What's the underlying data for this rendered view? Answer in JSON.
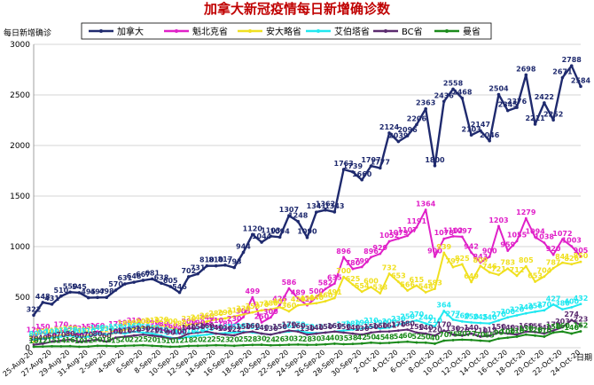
{
  "chart_data": {
    "type": "line",
    "title": "加拿大新冠疫情每日新增确诊数",
    "ylabel": "每日新增确诊",
    "xlabel": "日期",
    "ylim": [
      0,
      3000
    ],
    "yticks": [
      0,
      500,
      1000,
      1500,
      2000,
      2500,
      3000
    ],
    "grid": true,
    "legend_position": "top",
    "start_date": "2020-08-25",
    "days": 61,
    "x_tick_labels": [
      "25-Aug-20",
      "27-Aug-20",
      "29-Aug-20",
      "31-Aug-20",
      "2-Sep-20",
      "4-Sep-20",
      "6-Sep-20",
      "8-Sep-20",
      "10-Sep-20",
      "12-Sep-20",
      "14-Sep-20",
      "16-Sep-20",
      "18-Sep-20",
      "20-Sep-20",
      "22-Sep-20",
      "24-Sep-20",
      "26-Sep-20",
      "28-Sep-20",
      "30-Sep-20",
      "2-Oct-20",
      "4-Oct-20",
      "6-Oct-20",
      "8-Oct-20",
      "10-Oct-20",
      "12-Oct-20",
      "14-Oct-20",
      "16-Oct-20",
      "18-Oct-20",
      "20-Oct-20",
      "22-Oct-20",
      "24-Oct-20"
    ],
    "series": [
      {
        "name": "加拿大",
        "color": "#1f2a6e",
        "values": [
          322,
          448,
          431,
          510,
          550,
          545,
          495,
          497,
          498,
          570,
          631,
          648,
          667,
          681,
          638,
          605,
          546,
          702,
          731,
          810,
          810,
          817,
          793,
          944,
          1120,
          1044,
          1103,
          1094,
          1307,
          1248,
          1090,
          1341,
          1362,
          1343,
          1763,
          1739,
          1660,
          1797,
          1777,
          2124,
          2039,
          2096,
          2206,
          2363,
          1800,
          2436,
          2558,
          2468,
          2103,
          2147,
          2046,
          2504,
          2345,
          2376,
          2698,
          2211,
          2422,
          2252,
          2671,
          2788,
          2584
        ]
      },
      {
        "name": "魁北克省",
        "color": "#e020c8",
        "values": [
          120,
          150,
          110,
          170,
          140,
          130,
          150,
          160,
          120,
          175,
          190,
          210,
          200,
          190,
          180,
          160,
          140,
          200,
          190,
          240,
          210,
          180,
          230,
          303,
          499,
          250,
          300,
          425,
          586,
          489,
          420,
          500,
          582,
          635,
          896,
          780,
          799,
          896,
          929,
          1052,
          1079,
          1107,
          1191,
          1364,
          900,
          1078,
          1102,
          1097,
          942,
          843,
          900,
          1203,
          959,
          1055,
          1279,
          1094,
          1038,
          920,
          1072,
          1003,
          905
        ]
      },
      {
        "name": "安大略省",
        "color": "#f0e020",
        "values": [
          60,
          100,
          110,
          120,
          130,
          110,
          120,
          140,
          120,
          150,
          180,
          190,
          200,
          210,
          220,
          200,
          180,
          230,
          240,
          260,
          280,
          290,
          310,
          330,
          350,
          370,
          380,
          401,
          360,
          420,
          430,
          440,
          460,
          491,
          700,
          625,
          554,
          600,
          538,
          732,
          653,
          566,
          615,
          548,
          583,
          939,
          797,
          825,
          649,
          809,
          746,
          721,
          783,
          712,
          805,
          653,
          704,
          787,
          841,
          826,
          850
        ]
      },
      {
        "name": "艾伯塔省",
        "color": "#20e8f0",
        "values": [
          80,
          90,
          100,
          110,
          120,
          105,
          110,
          140,
          130,
          150,
          140,
          160,
          150,
          140,
          120,
          100,
          90,
          110,
          120,
          130,
          140,
          145,
          150,
          160,
          150,
          140,
          130,
          150,
          160,
          170,
          150,
          145,
          150,
          160,
          170,
          180,
          190,
          210,
          190,
          200,
          230,
          250,
          270,
          240,
          210,
          364,
          277,
          260,
          250,
          245,
          240,
          270,
          300,
          320,
          340,
          356,
          370,
          427,
          380,
          400,
          432
        ]
      },
      {
        "name": "BC省",
        "color": "#5a2a6e",
        "values": [
          30,
          40,
          60,
          70,
          80,
          60,
          70,
          80,
          60,
          100,
          110,
          120,
          130,
          120,
          110,
          90,
          100,
          140,
          150,
          160,
          140,
          130,
          122,
          150,
          160,
          140,
          130,
          150,
          170,
          160,
          130,
          140,
          150,
          160,
          150,
          140,
          130,
          150,
          160,
          161,
          170,
          180,
          150,
          140,
          120,
          170,
          130,
          120,
          140,
          110,
          119,
          150,
          140,
          130,
          160,
          155,
          140,
          170,
          203,
          274,
          223
        ]
      },
      {
        "name": "曼省",
        "color": "#1a8a1a",
        "values": [
          10,
          12,
          15,
          14,
          16,
          10,
          12,
          20,
          18,
          15,
          20,
          22,
          25,
          20,
          15,
          10,
          12,
          18,
          20,
          22,
          25,
          23,
          20,
          25,
          28,
          30,
          24,
          26,
          30,
          32,
          28,
          30,
          34,
          40,
          35,
          38,
          42,
          50,
          45,
          48,
          54,
          60,
          52,
          50,
          40,
          70,
          75,
          80,
          77,
          70,
          65,
          90,
          100,
          110,
          130,
          120,
          110,
          150,
          160,
          140,
          162
        ]
      }
    ]
  }
}
